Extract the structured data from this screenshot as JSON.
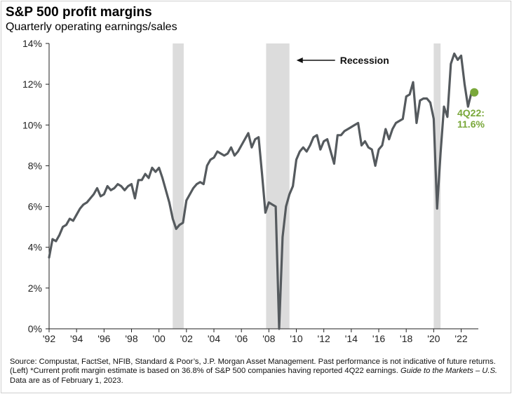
{
  "colors": {
    "line": "#555a5e",
    "recession": "#dcdcdc",
    "accent": "#7aa83b",
    "axis": "#222222"
  },
  "chart_data": {
    "type": "line",
    "title": "S&P 500 profit margins",
    "subtitle": "Quarterly operating earnings/sales",
    "xlabel": "",
    "ylabel": "",
    "xlim": [
      1992,
      2023.25
    ],
    "ylim": [
      0,
      14
    ],
    "yticks": [
      0,
      2,
      4,
      6,
      8,
      10,
      12,
      14
    ],
    "ytick_labels": [
      "0%",
      "2%",
      "4%",
      "6%",
      "8%",
      "10%",
      "12%",
      "14%"
    ],
    "xticks": [
      1992,
      1994,
      1996,
      1998,
      2000,
      2002,
      2004,
      2006,
      2008,
      2010,
      2012,
      2014,
      2016,
      2018,
      2020,
      2022
    ],
    "xtick_labels": [
      "'92",
      "'94",
      "'96",
      "'98",
      "'00",
      "'02",
      "'04",
      "'06",
      "'08",
      "'10",
      "'12",
      "'14",
      "'16",
      "'18",
      "'20",
      "'22"
    ],
    "recessions": [
      [
        2001.0,
        2001.8
      ],
      [
        2007.8,
        2009.5
      ],
      [
        2020.0,
        2020.5
      ]
    ],
    "recession_label": "Recession",
    "series": [
      {
        "name": "S&P 500 profit margin",
        "x": [
          1992.0,
          1992.25,
          1992.5,
          1992.75,
          1993.0,
          1993.25,
          1993.5,
          1993.75,
          1994.0,
          1994.25,
          1994.5,
          1994.75,
          1995.0,
          1995.25,
          1995.5,
          1995.75,
          1996.0,
          1996.25,
          1996.5,
          1996.75,
          1997.0,
          1997.25,
          1997.5,
          1997.75,
          1998.0,
          1998.25,
          1998.5,
          1998.75,
          1999.0,
          1999.25,
          1999.5,
          1999.75,
          2000.0,
          2000.25,
          2000.5,
          2000.75,
          2001.0,
          2001.25,
          2001.5,
          2001.75,
          2002.0,
          2002.25,
          2002.5,
          2002.75,
          2003.0,
          2003.25,
          2003.5,
          2003.75,
          2004.0,
          2004.25,
          2004.5,
          2004.75,
          2005.0,
          2005.25,
          2005.5,
          2005.75,
          2006.0,
          2006.25,
          2006.5,
          2006.75,
          2007.0,
          2007.25,
          2007.5,
          2007.75,
          2008.0,
          2008.25,
          2008.5,
          2008.75,
          2009.0,
          2009.25,
          2009.5,
          2009.75,
          2010.0,
          2010.25,
          2010.5,
          2010.75,
          2011.0,
          2011.25,
          2011.5,
          2011.75,
          2012.0,
          2012.25,
          2012.5,
          2012.75,
          2013.0,
          2013.25,
          2013.5,
          2013.75,
          2014.0,
          2014.25,
          2014.5,
          2014.75,
          2015.0,
          2015.25,
          2015.5,
          2015.75,
          2016.0,
          2016.25,
          2016.5,
          2016.75,
          2017.0,
          2017.25,
          2017.5,
          2017.75,
          2018.0,
          2018.25,
          2018.5,
          2018.75,
          2019.0,
          2019.25,
          2019.5,
          2019.75,
          2020.0,
          2020.25,
          2020.5,
          2020.75,
          2021.0,
          2021.25,
          2021.5,
          2021.75,
          2022.0,
          2022.25,
          2022.5,
          2022.75
        ],
        "values": [
          3.5,
          4.4,
          4.3,
          4.6,
          5.0,
          5.1,
          5.4,
          5.3,
          5.6,
          5.9,
          6.1,
          6.2,
          6.4,
          6.6,
          6.9,
          6.5,
          6.6,
          7.0,
          6.8,
          6.9,
          7.1,
          7.0,
          6.8,
          7.0,
          7.1,
          6.4,
          7.3,
          7.3,
          7.6,
          7.4,
          7.9,
          7.7,
          7.9,
          7.4,
          6.8,
          6.2,
          5.4,
          4.9,
          5.1,
          5.2,
          6.3,
          6.6,
          6.9,
          7.1,
          7.2,
          7.1,
          8.0,
          8.3,
          8.4,
          8.7,
          8.6,
          8.5,
          8.6,
          8.9,
          8.5,
          8.7,
          9.0,
          9.3,
          9.6,
          8.9,
          9.3,
          9.4,
          7.6,
          5.7,
          6.2,
          6.1,
          6.0,
          0.0,
          4.5,
          6.0,
          6.6,
          7.0,
          8.3,
          8.7,
          8.9,
          8.7,
          9.0,
          9.4,
          9.5,
          8.8,
          9.2,
          9.3,
          8.7,
          8.1,
          9.5,
          9.5,
          9.7,
          9.8,
          9.9,
          10.0,
          10.1,
          9.0,
          9.2,
          8.9,
          8.8,
          8.0,
          8.8,
          9.0,
          9.8,
          9.3,
          9.8,
          10.1,
          10.2,
          10.3,
          11.4,
          11.5,
          12.1,
          10.1,
          11.2,
          11.3,
          11.3,
          11.1,
          10.3,
          5.9,
          8.6,
          10.9,
          10.4,
          13.0,
          13.5,
          13.2,
          13.4,
          12.0,
          10.9,
          11.6
        ]
      }
    ],
    "annotation": {
      "label_line1": "4Q22:",
      "label_line2": "11.6%",
      "x": 2022.75,
      "y": 11.6
    }
  },
  "source_note": {
    "source_prefix": "Source: ",
    "source_main": "Compustat, FactSet, NFIB, Standard & Poor’s, J.P. Morgan Asset Management. Past performance is not indicative of future returns. (Left) *Current profit margin estimate is based on 36.8% of S&P 500 companies having reported 4Q22 earnings. ",
    "guide": "Guide to the Markets – U.S.",
    "date_text": " Data are as of February 1, 2023."
  }
}
